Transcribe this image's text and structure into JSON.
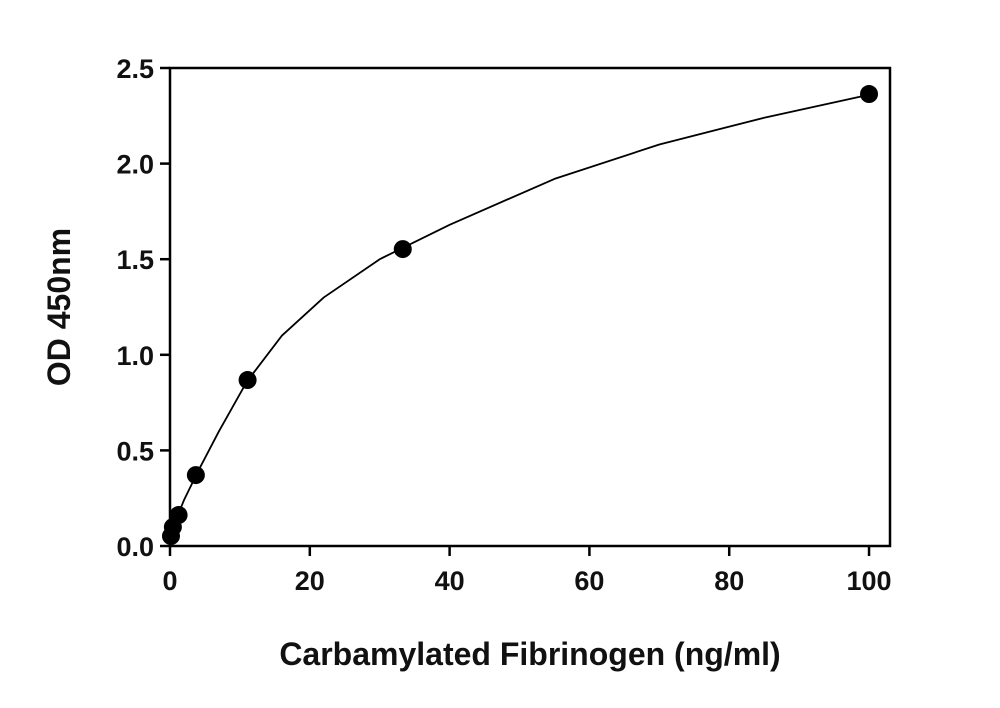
{
  "chart_data": {
    "type": "scatter",
    "x_label": "Carbamylated Fibrinogen (ng/ml)",
    "y_label": "OD 450nm",
    "xlim": [
      0,
      103
    ],
    "ylim": [
      0,
      2.5
    ],
    "xticks": [
      0,
      20,
      40,
      60,
      80,
      100
    ],
    "yticks": [
      {
        "value": 0,
        "label": "0.0"
      },
      0.5,
      {
        "value": 1,
        "label": "1.0"
      },
      1.5,
      {
        "value": 2,
        "label": "2.0"
      },
      2.5
    ],
    "points": {
      "color": "#000000",
      "x": [
        0.14,
        0.41,
        1.23,
        3.7,
        11.1,
        33.3,
        100
      ],
      "values": [
        0.052,
        0.099,
        0.162,
        0.371,
        0.868,
        1.553,
        2.364
      ]
    },
    "curve": {
      "color": "#000000",
      "x": [
        0,
        0.5,
        1,
        2,
        4,
        7,
        11,
        16,
        22,
        30,
        40,
        55,
        70,
        85,
        100
      ],
      "values": [
        0.05,
        0.1,
        0.15,
        0.24,
        0.39,
        0.6,
        0.86,
        1.1,
        1.3,
        1.5,
        1.68,
        1.92,
        2.1,
        2.24,
        2.36
      ]
    }
  }
}
